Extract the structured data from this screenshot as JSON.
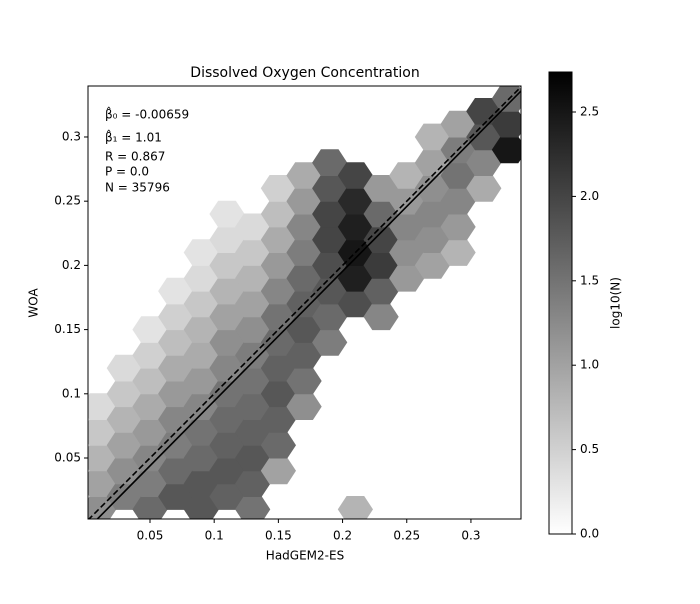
{
  "chart_data": {
    "type": "hexbin",
    "title": "Dissolved Oxygen Concentration",
    "xlabel": "HadGEM2-ES",
    "ylabel": "WOA",
    "xlim": [
      0.0017,
      0.339
    ],
    "ylim": [
      0.0025,
      0.3397
    ],
    "xticks": [
      0.05,
      0.1,
      0.15,
      0.2,
      0.25,
      0.3
    ],
    "yticks": [
      0.05,
      0.1,
      0.15,
      0.2,
      0.25,
      0.3
    ],
    "annotations": [
      "β̂₀ = -0.00659",
      "β̂₁ = 1.01",
      "R = 0.867",
      "P = 0.0",
      "N = 35796"
    ],
    "fit": {
      "intercept": -0.00659,
      "slope": 1.01
    },
    "hexbin": {
      "x": [
        0.01,
        0.01,
        0.01,
        0.01,
        0.01,
        0.03,
        0.03,
        0.03,
        0.03,
        0.03,
        0.03,
        0.05,
        0.05,
        0.05,
        0.05,
        0.05,
        0.05,
        0.05,
        0.05,
        0.07,
        0.07,
        0.07,
        0.07,
        0.07,
        0.07,
        0.07,
        0.07,
        0.07,
        0.09,
        0.09,
        0.09,
        0.09,
        0.09,
        0.09,
        0.09,
        0.09,
        0.09,
        0.09,
        0.09,
        0.11,
        0.11,
        0.11,
        0.11,
        0.11,
        0.11,
        0.11,
        0.11,
        0.11,
        0.11,
        0.11,
        0.11,
        0.13,
        0.13,
        0.13,
        0.13,
        0.13,
        0.13,
        0.13,
        0.13,
        0.13,
        0.13,
        0.13,
        0.13,
        0.15,
        0.15,
        0.15,
        0.15,
        0.15,
        0.15,
        0.15,
        0.15,
        0.15,
        0.15,
        0.15,
        0.15,
        0.17,
        0.17,
        0.17,
        0.17,
        0.17,
        0.17,
        0.17,
        0.17,
        0.17,
        0.17,
        0.19,
        0.19,
        0.19,
        0.19,
        0.19,
        0.19,
        0.19,
        0.19,
        0.21,
        0.21,
        0.21,
        0.21,
        0.21,
        0.21,
        0.21,
        0.23,
        0.23,
        0.23,
        0.23,
        0.23,
        0.23,
        0.25,
        0.25,
        0.25,
        0.25,
        0.25,
        0.27,
        0.27,
        0.27,
        0.27,
        0.27,
        0.27,
        0.29,
        0.29,
        0.29,
        0.29,
        0.29,
        0.29,
        0.31,
        0.31,
        0.31,
        0.31,
        0.33,
        0.33,
        0.33
      ],
      "y": [
        0.01,
        0.03,
        0.05,
        0.07,
        0.09,
        0.02,
        0.04,
        0.06,
        0.08,
        0.1,
        0.12,
        0.01,
        0.03,
        0.05,
        0.07,
        0.09,
        0.11,
        0.13,
        0.15,
        0.02,
        0.04,
        0.06,
        0.08,
        0.1,
        0.12,
        0.14,
        0.16,
        0.18,
        0.01,
        0.03,
        0.05,
        0.07,
        0.09,
        0.11,
        0.13,
        0.15,
        0.17,
        0.19,
        0.21,
        0.02,
        0.04,
        0.06,
        0.08,
        0.1,
        0.12,
        0.14,
        0.16,
        0.18,
        0.2,
        0.22,
        0.24,
        0.01,
        0.03,
        0.05,
        0.07,
        0.09,
        0.11,
        0.13,
        0.15,
        0.17,
        0.19,
        0.21,
        0.23,
        0.04,
        0.06,
        0.08,
        0.1,
        0.12,
        0.14,
        0.16,
        0.18,
        0.2,
        0.22,
        0.24,
        0.26,
        0.09,
        0.11,
        0.13,
        0.15,
        0.17,
        0.19,
        0.21,
        0.23,
        0.25,
        0.27,
        0.14,
        0.16,
        0.18,
        0.2,
        0.22,
        0.24,
        0.26,
        0.28,
        0.01,
        0.17,
        0.19,
        0.21,
        0.23,
        0.25,
        0.27,
        0.16,
        0.18,
        0.2,
        0.22,
        0.24,
        0.26,
        0.19,
        0.21,
        0.23,
        0.25,
        0.27,
        0.2,
        0.22,
        0.24,
        0.26,
        0.28,
        0.3,
        0.21,
        0.23,
        0.25,
        0.27,
        0.29,
        0.31,
        0.26,
        0.28,
        0.3,
        0.32,
        0.29,
        0.31,
        0.33
      ],
      "values": [
        1.2,
        1.0,
        0.8,
        0.6,
        0.4,
        1.4,
        1.2,
        1.0,
        0.8,
        0.6,
        0.4,
        1.6,
        1.4,
        1.3,
        1.1,
        0.9,
        0.7,
        0.5,
        0.3,
        1.8,
        1.6,
        1.4,
        1.3,
        1.1,
        0.9,
        0.7,
        0.5,
        0.3,
        1.8,
        1.8,
        1.6,
        1.5,
        1.3,
        1.1,
        0.9,
        0.8,
        0.6,
        0.4,
        0.3,
        1.7,
        1.8,
        1.7,
        1.6,
        1.5,
        1.3,
        1.2,
        1.0,
        0.8,
        0.6,
        0.4,
        0.3,
        1.5,
        1.7,
        1.8,
        1.7,
        1.6,
        1.5,
        1.4,
        1.2,
        1.0,
        0.8,
        0.6,
        0.4,
        1.0,
        1.6,
        1.7,
        1.8,
        1.7,
        1.6,
        1.5,
        1.3,
        1.1,
        0.9,
        0.7,
        0.5,
        1.2,
        1.5,
        1.7,
        1.8,
        1.7,
        1.6,
        1.4,
        1.3,
        1.1,
        0.9,
        1.4,
        1.6,
        1.8,
        1.9,
        2.0,
        2.0,
        1.8,
        1.6,
        0.8,
        1.9,
        2.4,
        2.5,
        2.4,
        2.3,
        2.0,
        1.3,
        1.7,
        2.1,
        2.0,
        1.6,
        1.1,
        1.1,
        1.2,
        1.3,
        1.1,
        0.8,
        1.0,
        1.2,
        1.3,
        1.2,
        1.0,
        0.8,
        0.8,
        1.1,
        1.3,
        1.5,
        1.4,
        1.0,
        0.9,
        1.3,
        1.8,
        2.0,
        2.5,
        2.1,
        1.6
      ]
    },
    "colorbar": {
      "label": "log10(N)",
      "lim": [
        0,
        2.737
      ],
      "ticks": [
        {
          "value": 0,
          "label": "0.0"
        },
        0.5,
        {
          "value": 1,
          "label": "1.0"
        },
        1.5,
        {
          "value": 2,
          "label": "2.0"
        },
        2.5
      ]
    }
  }
}
